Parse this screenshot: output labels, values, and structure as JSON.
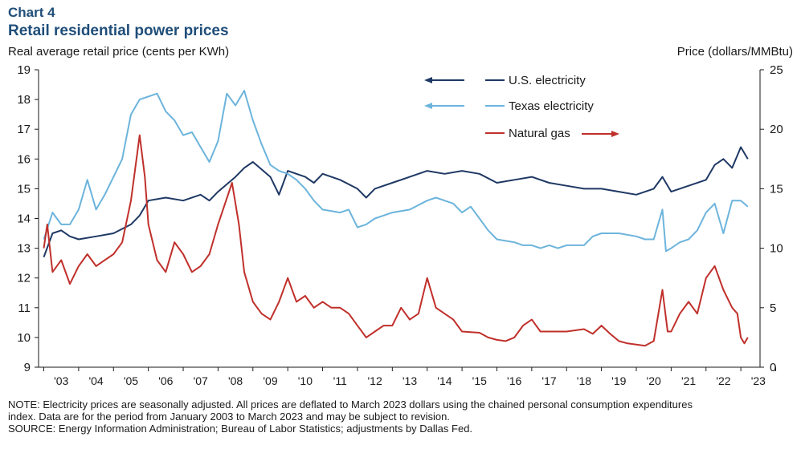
{
  "chart_number": "Chart 4",
  "title": "Retail residential power prices",
  "left_axis_label": "Real average retail price (cents per KWh)",
  "right_axis_label": "Price (dollars/MMBtu)",
  "note_line1": "NOTE: Electricity prices are seasonally adjusted. All prices are deflated to March 2023 dollars using the chained personal consumption expenditures",
  "note_line2": "index. Data are for the period from January 2003 to March 2023 and may be subject to revision.",
  "source_line": "SOURCE: Energy Information Administration; Bureau of Labor Statistics; adjustments by Dallas Fed.",
  "colors": {
    "us": "#1f3864",
    "texas": "#6cb4dc",
    "gas": "#c0302b",
    "axis": "#1a1a1a"
  },
  "chart_data": {
    "type": "line",
    "x_tick_labels": [
      "'03",
      "'04",
      "'05",
      "'06",
      "'07",
      "'08",
      "'09",
      "'10",
      "'11",
      "'12",
      "'13",
      "'14",
      "'15",
      "'16",
      "'17",
      "'18",
      "'19",
      "'20",
      "'21",
      "'22",
      "'23"
    ],
    "ylim_left": [
      9,
      19
    ],
    "yticks_left": [
      "9",
      "10",
      "11",
      "12",
      "13",
      "14",
      "15",
      "16",
      "17",
      "18",
      "19"
    ],
    "ylim_right": [
      0,
      25
    ],
    "yticks_right": [
      "0",
      "5",
      "10",
      "15",
      "20",
      "25"
    ],
    "legend": [
      {
        "name": "U.S. electricity",
        "arrow": "left",
        "color": "#1f3864"
      },
      {
        "name": "Texas electricity",
        "arrow": "left",
        "color": "#6cb4dc"
      },
      {
        "name": "Natural gas",
        "arrow": "right",
        "color": "#c0302b"
      }
    ],
    "series": [
      {
        "name": "U.S. electricity",
        "axis": "left",
        "color": "#1f3864",
        "points": [
          [
            2003.0,
            12.7
          ],
          [
            2003.25,
            13.5
          ],
          [
            2003.5,
            13.6
          ],
          [
            2003.75,
            13.4
          ],
          [
            2004.0,
            13.3
          ],
          [
            2004.5,
            13.4
          ],
          [
            2005.0,
            13.5
          ],
          [
            2005.5,
            13.8
          ],
          [
            2005.75,
            14.1
          ],
          [
            2006.0,
            14.6
          ],
          [
            2006.5,
            14.7
          ],
          [
            2007.0,
            14.6
          ],
          [
            2007.5,
            14.8
          ],
          [
            2007.75,
            14.6
          ],
          [
            2008.0,
            14.9
          ],
          [
            2008.5,
            15.4
          ],
          [
            2008.75,
            15.7
          ],
          [
            2009.0,
            15.9
          ],
          [
            2009.5,
            15.4
          ],
          [
            2009.75,
            14.8
          ],
          [
            2010.0,
            15.6
          ],
          [
            2010.5,
            15.4
          ],
          [
            2010.75,
            15.2
          ],
          [
            2011.0,
            15.5
          ],
          [
            2011.5,
            15.3
          ],
          [
            2012.0,
            15.0
          ],
          [
            2012.25,
            14.7
          ],
          [
            2012.5,
            15.0
          ],
          [
            2013.0,
            15.2
          ],
          [
            2013.5,
            15.4
          ],
          [
            2014.0,
            15.6
          ],
          [
            2014.5,
            15.5
          ],
          [
            2015.0,
            15.6
          ],
          [
            2015.5,
            15.5
          ],
          [
            2016.0,
            15.2
          ],
          [
            2016.5,
            15.3
          ],
          [
            2017.0,
            15.4
          ],
          [
            2017.5,
            15.2
          ],
          [
            2018.0,
            15.1
          ],
          [
            2018.5,
            15.0
          ],
          [
            2019.0,
            15.0
          ],
          [
            2019.5,
            14.9
          ],
          [
            2020.0,
            14.8
          ],
          [
            2020.5,
            15.0
          ],
          [
            2020.75,
            15.4
          ],
          [
            2021.0,
            14.9
          ],
          [
            2021.5,
            15.1
          ],
          [
            2022.0,
            15.3
          ],
          [
            2022.25,
            15.8
          ],
          [
            2022.5,
            16.0
          ],
          [
            2022.75,
            15.7
          ],
          [
            2023.0,
            16.4
          ],
          [
            2023.2,
            16.0
          ]
        ]
      },
      {
        "name": "Texas electricity",
        "axis": "left",
        "color": "#6cb4dc",
        "points": [
          [
            2003.0,
            13.3
          ],
          [
            2003.25,
            14.2
          ],
          [
            2003.5,
            13.8
          ],
          [
            2003.75,
            13.8
          ],
          [
            2004.0,
            14.3
          ],
          [
            2004.25,
            15.3
          ],
          [
            2004.5,
            14.3
          ],
          [
            2004.75,
            14.8
          ],
          [
            2005.0,
            15.4
          ],
          [
            2005.25,
            16.0
          ],
          [
            2005.5,
            17.5
          ],
          [
            2005.75,
            18.0
          ],
          [
            2006.0,
            18.1
          ],
          [
            2006.25,
            18.2
          ],
          [
            2006.5,
            17.6
          ],
          [
            2006.75,
            17.3
          ],
          [
            2007.0,
            16.8
          ],
          [
            2007.25,
            16.9
          ],
          [
            2007.5,
            16.4
          ],
          [
            2007.75,
            15.9
          ],
          [
            2008.0,
            16.6
          ],
          [
            2008.25,
            18.2
          ],
          [
            2008.5,
            17.8
          ],
          [
            2008.75,
            18.3
          ],
          [
            2009.0,
            17.3
          ],
          [
            2009.25,
            16.5
          ],
          [
            2009.5,
            15.8
          ],
          [
            2009.75,
            15.6
          ],
          [
            2010.0,
            15.5
          ],
          [
            2010.25,
            15.3
          ],
          [
            2010.5,
            15.0
          ],
          [
            2010.75,
            14.6
          ],
          [
            2011.0,
            14.3
          ],
          [
            2011.5,
            14.2
          ],
          [
            2011.75,
            14.3
          ],
          [
            2012.0,
            13.7
          ],
          [
            2012.25,
            13.8
          ],
          [
            2012.5,
            14.0
          ],
          [
            2012.75,
            14.1
          ],
          [
            2013.0,
            14.2
          ],
          [
            2013.5,
            14.3
          ],
          [
            2014.0,
            14.6
          ],
          [
            2014.25,
            14.7
          ],
          [
            2014.5,
            14.6
          ],
          [
            2014.75,
            14.5
          ],
          [
            2015.0,
            14.2
          ],
          [
            2015.25,
            14.4
          ],
          [
            2015.5,
            14.0
          ],
          [
            2015.75,
            13.6
          ],
          [
            2016.0,
            13.3
          ],
          [
            2016.5,
            13.2
          ],
          [
            2016.75,
            13.1
          ],
          [
            2017.0,
            13.1
          ],
          [
            2017.25,
            13.0
          ],
          [
            2017.5,
            13.1
          ],
          [
            2017.75,
            13.0
          ],
          [
            2018.0,
            13.1
          ],
          [
            2018.5,
            13.1
          ],
          [
            2018.75,
            13.4
          ],
          [
            2019.0,
            13.5
          ],
          [
            2019.5,
            13.5
          ],
          [
            2020.0,
            13.4
          ],
          [
            2020.25,
            13.3
          ],
          [
            2020.5,
            13.3
          ],
          [
            2020.75,
            14.3
          ],
          [
            2020.85,
            12.9
          ],
          [
            2021.0,
            13.0
          ],
          [
            2021.25,
            13.2
          ],
          [
            2021.5,
            13.3
          ],
          [
            2021.75,
            13.6
          ],
          [
            2022.0,
            14.2
          ],
          [
            2022.25,
            14.5
          ],
          [
            2022.5,
            13.5
          ],
          [
            2022.75,
            14.6
          ],
          [
            2023.0,
            14.6
          ],
          [
            2023.2,
            14.4
          ]
        ]
      },
      {
        "name": "Natural gas",
        "axis": "right",
        "color": "#c0302b",
        "points": [
          [
            2003.0,
            10.0
          ],
          [
            2003.1,
            12.0
          ],
          [
            2003.25,
            8.0
          ],
          [
            2003.5,
            9.0
          ],
          [
            2003.75,
            7.0
          ],
          [
            2004.0,
            8.5
          ],
          [
            2004.25,
            9.5
          ],
          [
            2004.5,
            8.5
          ],
          [
            2004.75,
            9.0
          ],
          [
            2005.0,
            9.5
          ],
          [
            2005.25,
            10.5
          ],
          [
            2005.5,
            14.0
          ],
          [
            2005.75,
            19.5
          ],
          [
            2005.9,
            16.0
          ],
          [
            2006.0,
            12.0
          ],
          [
            2006.25,
            9.0
          ],
          [
            2006.5,
            8.0
          ],
          [
            2006.75,
            10.5
          ],
          [
            2007.0,
            9.5
          ],
          [
            2007.25,
            8.0
          ],
          [
            2007.5,
            8.5
          ],
          [
            2007.75,
            9.5
          ],
          [
            2008.0,
            12.0
          ],
          [
            2008.4,
            15.5
          ],
          [
            2008.6,
            12.0
          ],
          [
            2008.75,
            8.0
          ],
          [
            2009.0,
            5.5
          ],
          [
            2009.25,
            4.5
          ],
          [
            2009.5,
            4.0
          ],
          [
            2009.75,
            5.5
          ],
          [
            2010.0,
            7.5
          ],
          [
            2010.25,
            5.5
          ],
          [
            2010.5,
            6.0
          ],
          [
            2010.75,
            5.0
          ],
          [
            2011.0,
            5.5
          ],
          [
            2011.25,
            5.0
          ],
          [
            2011.5,
            5.0
          ],
          [
            2011.75,
            4.5
          ],
          [
            2012.0,
            3.5
          ],
          [
            2012.25,
            2.5
          ],
          [
            2012.5,
            3.0
          ],
          [
            2012.75,
            3.5
          ],
          [
            2013.0,
            3.5
          ],
          [
            2013.25,
            5.0
          ],
          [
            2013.5,
            4.0
          ],
          [
            2013.75,
            4.5
          ],
          [
            2014.0,
            7.5
          ],
          [
            2014.25,
            5.0
          ],
          [
            2014.5,
            4.5
          ],
          [
            2014.75,
            4.0
          ],
          [
            2015.0,
            3.0
          ],
          [
            2015.5,
            2.9
          ],
          [
            2015.75,
            2.5
          ],
          [
            2016.0,
            2.3
          ],
          [
            2016.25,
            2.2
          ],
          [
            2016.5,
            2.5
          ],
          [
            2016.75,
            3.5
          ],
          [
            2017.0,
            4.0
          ],
          [
            2017.25,
            3.0
          ],
          [
            2017.5,
            3.0
          ],
          [
            2017.75,
            3.0
          ],
          [
            2018.0,
            3.0
          ],
          [
            2018.5,
            3.2
          ],
          [
            2018.75,
            2.8
          ],
          [
            2019.0,
            3.5
          ],
          [
            2019.25,
            2.8
          ],
          [
            2019.5,
            2.2
          ],
          [
            2019.75,
            2.0
          ],
          [
            2020.0,
            1.9
          ],
          [
            2020.25,
            1.8
          ],
          [
            2020.5,
            2.2
          ],
          [
            2020.75,
            6.5
          ],
          [
            2020.9,
            3.0
          ],
          [
            2021.0,
            3.0
          ],
          [
            2021.25,
            4.5
          ],
          [
            2021.5,
            5.5
          ],
          [
            2021.75,
            4.5
          ],
          [
            2022.0,
            7.5
          ],
          [
            2022.25,
            8.5
          ],
          [
            2022.5,
            6.5
          ],
          [
            2022.75,
            5.0
          ],
          [
            2022.9,
            4.5
          ],
          [
            2023.0,
            2.5
          ],
          [
            2023.1,
            2.0
          ],
          [
            2023.2,
            2.5
          ]
        ]
      }
    ]
  }
}
